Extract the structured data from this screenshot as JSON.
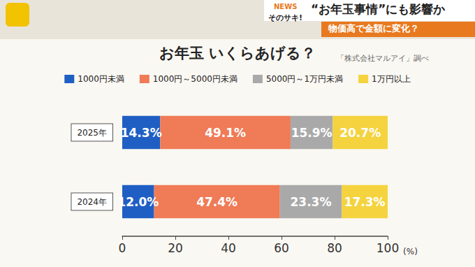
{
  "chart_data": {
    "type": "bar",
    "title": "お年玉 いくらあげる？",
    "annotations": [
      "「株式会社マルアイ」調べ",
      "“お年玉事情”にも影響か",
      "物価高で金額に変化？",
      "NEWS",
      "そのサキ!"
    ],
    "xlabel": "(%)",
    "categories": [
      "2025年",
      "2024年"
    ],
    "series": [
      {
        "name": "1000円未満",
        "color": "#1f5fc4",
        "values": [
          14.3,
          12.0
        ],
        "value_labels": [
          "14.3%",
          "12.0%"
        ]
      },
      {
        "name": "1000円～5000円未満",
        "color": "#ef7b57",
        "values": [
          49.1,
          47.4
        ],
        "value_labels": [
          "49.1%",
          "47.4%"
        ]
      },
      {
        "name": "5000円～1万円未満",
        "color": "#a9a9a9",
        "values": [
          15.9,
          23.3
        ],
        "value_labels": [
          "15.9%",
          "23.3%"
        ]
      },
      {
        "name": "1万円以上",
        "color": "#f4d33e",
        "values": [
          20.7,
          17.3
        ],
        "value_labels": [
          "20.7%",
          "17.3%"
        ]
      }
    ],
    "xlim": [
      0,
      100
    ],
    "xticks": [
      0,
      20,
      40,
      60,
      80,
      100
    ],
    "orientation": "horizontal",
    "stacked": true,
    "data_labels": true,
    "grid": false,
    "legend": "top"
  }
}
